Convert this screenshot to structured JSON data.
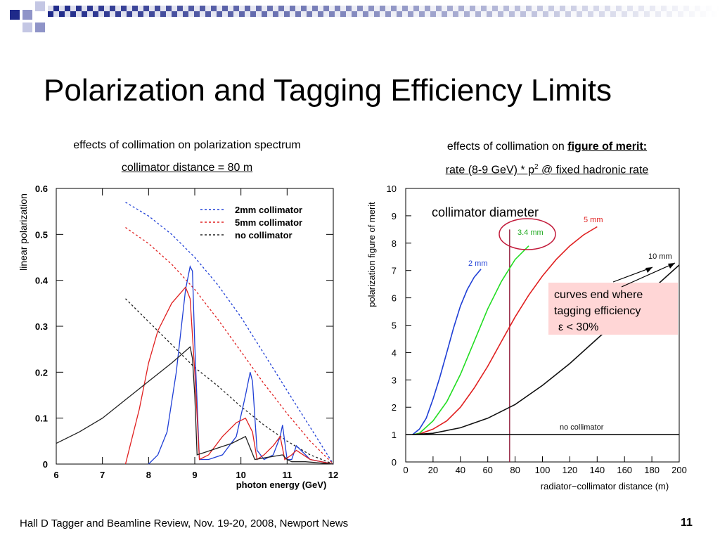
{
  "slide": {
    "title": "Polarization and Tagging Efficiency Limits",
    "footer": "Hall D Tagger and Beamline Review, Nov. 19-20, 2008, Newport News",
    "page_number": "11",
    "accent_color": "#1f2a8a",
    "accent_light": "#8f94c8"
  },
  "left_panel": {
    "caption": "effects of collimation on polarization spectrum",
    "subcaption": "collimator distance = 80 m"
  },
  "right_panel": {
    "caption_prefix": "effects of collimation on ",
    "caption_bold": "figure of merit:",
    "subcaption_a": "rate (8-9 GeV) * p",
    "subcaption_sup": "2",
    "subcaption_b": "  @ fixed hadronic rate",
    "diameter_label": "collimator diameter",
    "note_line1": "curves end where",
    "note_line2": "tagging efficiency",
    "note_line3": "ε < 30%"
  },
  "chart_data": [
    {
      "type": "line",
      "title": "",
      "xlabel": "photon energy (GeV)",
      "ylabel": "linear polarization",
      "xlim": [
        6,
        12
      ],
      "ylim": [
        0,
        0.6
      ],
      "xticks": [
        "6",
        "7",
        "8",
        "9",
        "10",
        "11",
        "12"
      ],
      "yticks": [
        "0",
        "0.1",
        "0.2",
        "0.3",
        "0.4",
        "0.5",
        "0.6"
      ],
      "legend_position": "top-right",
      "grid": false,
      "series": [
        {
          "name": "2mm collimator",
          "color": "#1f3fd6",
          "style": "dashed",
          "x": [
            7.5,
            8.0,
            8.5,
            9.0,
            9.5,
            10.0,
            10.5,
            11.0,
            11.5,
            12.0
          ],
          "y": [
            0.57,
            0.54,
            0.5,
            0.45,
            0.39,
            0.32,
            0.24,
            0.16,
            0.08,
            0.0
          ]
        },
        {
          "name": "5mm collimator",
          "color": "#e02020",
          "style": "dashed",
          "x": [
            7.5,
            8.0,
            8.5,
            9.0,
            9.5,
            10.0,
            10.5,
            11.0,
            11.5,
            12.0
          ],
          "y": [
            0.515,
            0.48,
            0.435,
            0.38,
            0.315,
            0.245,
            0.175,
            0.11,
            0.05,
            0.0
          ]
        },
        {
          "name": "no collimator",
          "color": "#222222",
          "style": "dashed",
          "x": [
            7.5,
            8.0,
            8.5,
            9.0,
            9.5,
            10.0,
            10.5,
            11.0,
            11.5,
            12.0
          ],
          "y": [
            0.36,
            0.31,
            0.26,
            0.21,
            0.17,
            0.125,
            0.085,
            0.05,
            0.02,
            0.0
          ]
        },
        {
          "name": "",
          "color": "#1f3fd6",
          "style": "solid",
          "x": [
            8.0,
            8.2,
            8.4,
            8.6,
            8.8,
            8.9,
            8.95,
            9.0,
            9.1,
            9.3,
            9.6,
            9.9,
            10.1,
            10.2,
            10.25,
            10.35,
            10.5,
            10.7,
            10.85,
            10.9,
            11.0,
            11.1,
            11.2,
            11.5,
            12.0
          ],
          "y": [
            0.0,
            0.02,
            0.07,
            0.2,
            0.38,
            0.43,
            0.42,
            0.26,
            0.01,
            0.01,
            0.02,
            0.06,
            0.15,
            0.2,
            0.18,
            0.03,
            0.01,
            0.02,
            0.06,
            0.085,
            0.01,
            0.01,
            0.04,
            0.01,
            0.0
          ]
        },
        {
          "name": "",
          "color": "#e02020",
          "style": "solid",
          "x": [
            7.5,
            7.8,
            8.0,
            8.2,
            8.5,
            8.8,
            8.9,
            9.0,
            9.1,
            9.3,
            9.6,
            9.9,
            10.1,
            10.25,
            10.35,
            10.5,
            10.7,
            10.85,
            10.95,
            11.1,
            11.2,
            11.5,
            12.0
          ],
          "y": [
            0.0,
            0.12,
            0.22,
            0.29,
            0.35,
            0.385,
            0.36,
            0.2,
            0.01,
            0.02,
            0.06,
            0.09,
            0.1,
            0.07,
            0.01,
            0.02,
            0.04,
            0.06,
            0.01,
            0.02,
            0.03,
            0.01,
            0.0
          ]
        },
        {
          "name": "",
          "color": "#222222",
          "style": "solid",
          "x": [
            6.0,
            6.5,
            7.0,
            7.5,
            8.0,
            8.5,
            8.9,
            8.95,
            9.0,
            9.05,
            9.2,
            9.5,
            9.8,
            10.1,
            10.2,
            10.3,
            10.6,
            10.9,
            11.0,
            11.1,
            11.4,
            12.0
          ],
          "y": [
            0.045,
            0.07,
            0.1,
            0.14,
            0.18,
            0.22,
            0.255,
            0.23,
            0.15,
            0.02,
            0.025,
            0.035,
            0.045,
            0.06,
            0.035,
            0.01,
            0.015,
            0.02,
            0.01,
            0.005,
            0.005,
            0.0
          ]
        }
      ]
    },
    {
      "type": "line",
      "title": "",
      "xlabel": "radiator−collimator distance (m)",
      "ylabel": "polarization figure of merit",
      "xlim": [
        0,
        200
      ],
      "ylim": [
        0,
        10
      ],
      "xticks": [
        "0",
        "20",
        "40",
        "60",
        "80",
        "100",
        "120",
        "140",
        "160",
        "180",
        "200"
      ],
      "yticks": [
        "0",
        "1",
        "2",
        "3",
        "4",
        "5",
        "6",
        "7",
        "8",
        "9",
        "10"
      ],
      "grid": false,
      "vertical_marker_x": 76,
      "series": [
        {
          "name": "2 mm",
          "color": "#1f3fd6",
          "x": [
            5,
            10,
            15,
            20,
            25,
            30,
            35,
            40,
            45,
            50,
            55
          ],
          "y": [
            1.0,
            1.2,
            1.6,
            2.3,
            3.1,
            4.0,
            4.9,
            5.7,
            6.3,
            6.75,
            7.05
          ]
        },
        {
          "name": "3.4 mm",
          "color": "#22dd22",
          "x": [
            5,
            10,
            20,
            30,
            40,
            50,
            60,
            70,
            80,
            90
          ],
          "y": [
            1.0,
            1.05,
            1.5,
            2.2,
            3.2,
            4.4,
            5.6,
            6.6,
            7.4,
            7.9
          ]
        },
        {
          "name": "5 mm",
          "color": "#e02020",
          "x": [
            5,
            10,
            20,
            30,
            40,
            50,
            60,
            70,
            80,
            90,
            100,
            110,
            120,
            130,
            140
          ],
          "y": [
            1.0,
            1.02,
            1.2,
            1.5,
            2.0,
            2.7,
            3.5,
            4.4,
            5.3,
            6.1,
            6.8,
            7.4,
            7.9,
            8.3,
            8.6
          ]
        },
        {
          "name": "10 mm",
          "color": "#111111",
          "x": [
            5,
            20,
            40,
            60,
            80,
            100,
            120,
            140,
            160,
            180,
            200
          ],
          "y": [
            1.0,
            1.05,
            1.25,
            1.6,
            2.1,
            2.8,
            3.6,
            4.5,
            5.4,
            6.3,
            7.2
          ]
        },
        {
          "name": "no collimator",
          "color": "#111111",
          "x": [
            0,
            200
          ],
          "y": [
            1.0,
            1.0
          ]
        }
      ]
    }
  ]
}
